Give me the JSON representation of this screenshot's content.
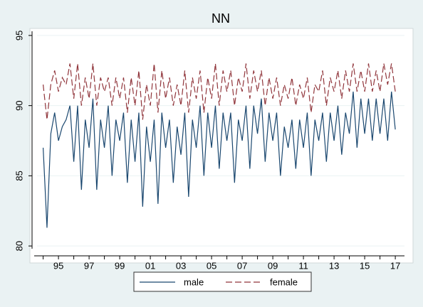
{
  "chart_data": {
    "type": "line",
    "title": "NN",
    "x": [
      1994,
      1994.25,
      1994.5,
      1994.75,
      1995,
      1995.25,
      1995.5,
      1995.75,
      1996,
      1996.25,
      1996.5,
      1996.75,
      1997,
      1997.25,
      1997.5,
      1997.75,
      1998,
      1998.25,
      1998.5,
      1998.75,
      1999,
      1999.25,
      1999.5,
      1999.75,
      2000,
      2000.25,
      2000.5,
      2000.75,
      2001,
      2001.25,
      2001.5,
      2001.75,
      2002,
      2002.25,
      2002.5,
      2002.75,
      2003,
      2003.25,
      2003.5,
      2003.75,
      2004,
      2004.25,
      2004.5,
      2004.75,
      2005,
      2005.25,
      2005.5,
      2005.75,
      2006,
      2006.25,
      2006.5,
      2006.75,
      2007,
      2007.25,
      2007.5,
      2007.75,
      2008,
      2008.25,
      2008.5,
      2008.75,
      2009,
      2009.25,
      2009.5,
      2009.75,
      2010,
      2010.25,
      2010.5,
      2010.75,
      2011,
      2011.25,
      2011.5,
      2011.75,
      2012,
      2012.25,
      2012.5,
      2012.75,
      2013,
      2013.25,
      2013.5,
      2013.75,
      2014,
      2014.25,
      2014.5,
      2014.75,
      2015,
      2015.25,
      2015.5,
      2015.75,
      2016,
      2016.25,
      2016.5,
      2016.75,
      2017
    ],
    "series": [
      {
        "name": "male",
        "color": "#1a476f",
        "style": "solid",
        "values": [
          87,
          81.3,
          88,
          89.5,
          87.5,
          88.5,
          89,
          90,
          86,
          90,
          84,
          89,
          87,
          90.5,
          84,
          89,
          87,
          90,
          85,
          89,
          87.5,
          89.5,
          84.5,
          89,
          86,
          89.5,
          82.8,
          88.5,
          86,
          89,
          83,
          89.5,
          87,
          89,
          84.5,
          88.5,
          86.5,
          89.5,
          83.5,
          89,
          87,
          90,
          85,
          89.5,
          87,
          90,
          85.5,
          89.5,
          87.5,
          89.5,
          84.5,
          89,
          87.5,
          90,
          85.5,
          90,
          88,
          90.5,
          86,
          89.5,
          87.5,
          89.5,
          85,
          88.5,
          87,
          89,
          85.5,
          89,
          87,
          89.5,
          85,
          89,
          87.5,
          89.5,
          86,
          89.5,
          87.5,
          90,
          86.5,
          89.5,
          88,
          91,
          87,
          90.5,
          88,
          90.5,
          87.5,
          90.5,
          88,
          90.5,
          87.5,
          91,
          88.3
        ]
      },
      {
        "name": "female",
        "color": "#90353b",
        "style": "dashed",
        "values": [
          91.5,
          89,
          91.5,
          92.5,
          91,
          92,
          91.5,
          93,
          90.5,
          93,
          90,
          92,
          90.5,
          93,
          90,
          92,
          91,
          92,
          90,
          92,
          90.5,
          92,
          89.5,
          92,
          90,
          92.5,
          89,
          91.5,
          90,
          93,
          89.5,
          92.5,
          90.5,
          92,
          90,
          91.5,
          90,
          92.5,
          89.5,
          92,
          90.5,
          92.5,
          89.5,
          92,
          90.5,
          93,
          90,
          92.5,
          91,
          92.5,
          90,
          92,
          91,
          93,
          90.5,
          92.5,
          91,
          92.5,
          90,
          92,
          90.5,
          92,
          90,
          91.5,
          90.5,
          92,
          90,
          91.5,
          90.5,
          92,
          89.5,
          91.5,
          91,
          92.5,
          90,
          92,
          91,
          92.5,
          90.5,
          92.5,
          91,
          93,
          91,
          92.5,
          91,
          93,
          91,
          92.5,
          91,
          93,
          91.5,
          93,
          91
        ]
      }
    ],
    "xlim": [
      1993.6,
      2017.6
    ],
    "xticks": [
      {
        "value": 1995,
        "label": "95"
      },
      {
        "value": 1997,
        "label": "97"
      },
      {
        "value": 1999,
        "label": "99"
      },
      {
        "value": 2001,
        "label": "01"
      },
      {
        "value": 2003,
        "label": "03"
      },
      {
        "value": 2005,
        "label": "05"
      },
      {
        "value": 2007,
        "label": "07"
      },
      {
        "value": 2009,
        "label": "09"
      },
      {
        "value": 2011,
        "label": "11"
      },
      {
        "value": 2013,
        "label": "13"
      },
      {
        "value": 2015,
        "label": "15"
      },
      {
        "value": 2017,
        "label": "17"
      }
    ],
    "xminorticks": [
      1994,
      1996,
      1998,
      2000,
      2002,
      2004,
      2006,
      2008,
      2010,
      2012,
      2014,
      2016
    ],
    "ylim": [
      79.5,
      95.5
    ],
    "yticks": [
      80,
      85,
      90,
      95
    ],
    "grid": true,
    "legend": "bottom"
  }
}
